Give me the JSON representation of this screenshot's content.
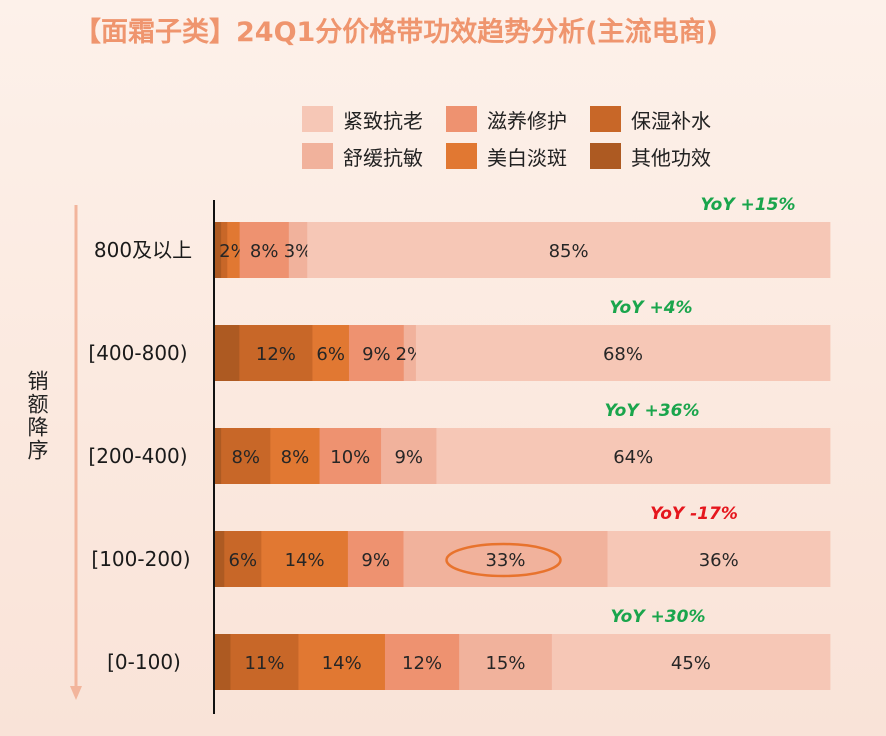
{
  "title": "【面霜子类】24Q1分价格带功效趋势分析(主流电商)",
  "axis_title": "销额降序",
  "colors": {
    "紧致抗老": "#f6c7b6",
    "滋养修护": "#ee9270",
    "保湿补水": "#c86728",
    "舒缓抗敏": "#f1b29c",
    "美白淡斑": "#e17832",
    "其他功效": "#ad5a22",
    "yoy_up": "#1aa54c",
    "yoy_down": "#e5161d",
    "highlight": "#e8732d"
  },
  "legend": [
    {
      "label": "紧致抗老",
      "color": "#f6c7b6"
    },
    {
      "label": "滋养修护",
      "color": "#ee9270"
    },
    {
      "label": "保湿补水",
      "color": "#c86728"
    },
    {
      "label": "舒缓抗敏",
      "color": "#f1b29c"
    },
    {
      "label": "美白淡斑",
      "color": "#e17832"
    },
    {
      "label": "其他功效",
      "color": "#ad5a22"
    }
  ],
  "chart_data": {
    "type": "bar",
    "orientation": "horizontal",
    "stacked": true,
    "title": "【面霜子类】24Q1分价格带功效趋势分析(主流电商)",
    "ylabel": "销额降序",
    "categories": [
      "800及以上",
      "[400-800)",
      "[200-400)",
      "[100-200)",
      "[0-100)"
    ],
    "yoy": [
      "YoY +15%",
      "YoY +4%",
      "YoY +36%",
      "YoY -17%",
      "YoY +30%"
    ],
    "yoy_direction": [
      "up",
      "up",
      "up",
      "down",
      "up"
    ],
    "segment_order": [
      "其他功效",
      "保湿补水",
      "美白淡斑",
      "滋养修护",
      "舒缓抗敏",
      "紧致抗老"
    ],
    "series": [
      {
        "name": "其他功效",
        "values": [
          1,
          4,
          1,
          1.5,
          2.5
        ],
        "labels": [
          "",
          "",
          "",
          "",
          ""
        ]
      },
      {
        "name": "保湿补水",
        "values": [
          1,
          12,
          8,
          6,
          11
        ],
        "labels": [
          "",
          "12%",
          "8%",
          "6%",
          "11%"
        ]
      },
      {
        "name": "美白淡斑",
        "values": [
          2,
          6,
          8,
          14,
          14
        ],
        "labels": [
          "2%",
          "6%",
          "8%",
          "14%",
          "14%"
        ]
      },
      {
        "name": "滋养修护",
        "values": [
          8,
          9,
          10,
          9,
          12
        ],
        "labels": [
          "8%",
          "9%",
          "10%",
          "9%",
          "12%"
        ]
      },
      {
        "name": "舒缓抗敏",
        "values": [
          3,
          2,
          9,
          33,
          15
        ],
        "labels": [
          "3%",
          "2%",
          "9%",
          "33%",
          "15%"
        ]
      },
      {
        "name": "紧致抗老",
        "values": [
          85,
          68,
          64,
          36,
          45
        ],
        "labels": [
          "85%",
          "68%",
          "64%",
          "36%",
          "45%"
        ]
      }
    ],
    "highlight": {
      "category": "[100-200)",
      "series": "舒缓抗敏"
    },
    "xlim": [
      0,
      100
    ]
  }
}
